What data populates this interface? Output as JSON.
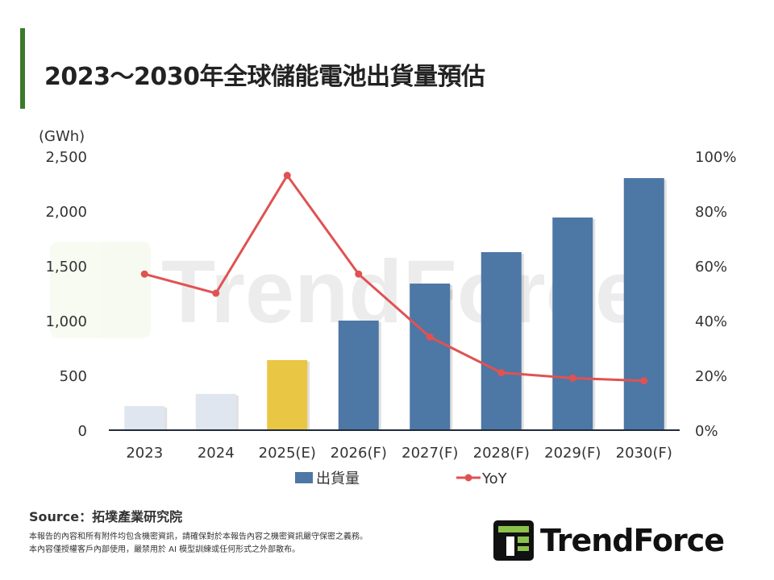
{
  "header": {
    "title": "2023～2030年全球儲能電池出貨量預估"
  },
  "chart_data": {
    "type": "bar+line",
    "title": "2023～2030年全球儲能電池出貨量預估",
    "ylabel": "(GWh)",
    "categories": [
      "2023",
      "2024",
      "2025(E)",
      "2026(F)",
      "2027(F)",
      "2028(F)",
      "2029(F)",
      "2030(F)"
    ],
    "series": [
      {
        "name": "出貨量",
        "type": "bar",
        "axis": "left",
        "values": [
          220,
          331,
          640,
          1000,
          1338,
          1625,
          1941,
          2301
        ],
        "colors": [
          "#dfe6ef",
          "#dfe6ef",
          "#eac645",
          "#4d77a5",
          "#4d77a5",
          "#4d77a5",
          "#4d77a5",
          "#4d77a5"
        ]
      },
      {
        "name": "YoY",
        "type": "line",
        "axis": "right",
        "unit": "%",
        "values": [
          57,
          50,
          93,
          57,
          34,
          21,
          19,
          18
        ],
        "color": "#e05252"
      }
    ],
    "ylim": [
      0,
      2500
    ],
    "yticks": [
      "0",
      "500",
      "1,000",
      "1,500",
      "2,000",
      "2,500"
    ],
    "y2lim": [
      0,
      100
    ],
    "y2ticks": [
      "0%",
      "20%",
      "40%",
      "60%",
      "80%",
      "100%"
    ],
    "grid": false,
    "legend": "bottom"
  },
  "footer": {
    "source": "Source：拓墣產業研究院",
    "disclaimer_1": "本報告的內容和所有附件均包含機密資訊，請確保對於本報告內容之機密資訊嚴守保密之義務。",
    "disclaimer_2": "本內容僅授權客戶內部使用，嚴禁用於 AI 模型訓練或任何形式之外部散布。",
    "logo": "TrendForce"
  }
}
